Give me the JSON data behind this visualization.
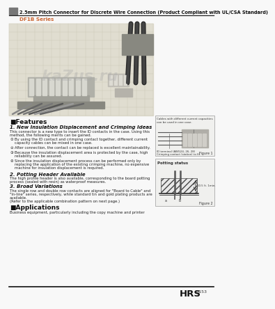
{
  "title": "2.5mm Pitch Connector for Discrete Wire Connection (Product Compliant with UL/CSA Standard)",
  "series_name": "DF1B Series",
  "bg_color": "#f8f8f8",
  "header_bar_color": "#777777",
  "header_line_color": "#222222",
  "features_header": "■Features",
  "section1_title": "1. New Insulation Displacement and Crimping Ideas",
  "section1_body_line1": "This connector is a new type to insert the ID contacts in the case. Using this",
  "section1_body_line2": "method, the following merits can be gained.",
  "section1_items": [
    "By using the ID contact and crimping contact together, different current\n    capacity cables can be mixed in one case.",
    "After connection, the contact can be replaced is excellent maintainability.",
    "Because the insulation displacement area is protected by the case, high\n    reliability can be assured.",
    "Since the insulation displacement process can be performed only by\n    replacing the application of the existing crimping machine, no expensive\n    machine for insulation displacement is required."
  ],
  "section2_title": "2. Potting Header Available",
  "section2_body": "The high profile header is also available, corresponding to the board potting\nprocess (sealed with resin) as waterproof measures.",
  "section3_title": "3. Broad Variations",
  "section3_body": "The single row and double row contacts are aligned for \"Board to Cable\" and\n\"In-line\" series, respectively, while standard tin and gold plating products are\navailable.\n(Refer to the applicable combination pattern on next page.)",
  "applications_header": "■Applications",
  "applications_body": "Business equipment, particularly including the copy machine and printer",
  "figure1_caption": "Figure 1",
  "figure2_caption": "Figure 2",
  "figure1_note1": "Cables with different current capacities",
  "figure1_note2": "can be used in one case.",
  "figure1_note3": "ID terminal (AWG24, 26, 28)",
  "figure1_note4": "Crimping contact (station) to fit",
  "figure2_title": "Potting status",
  "figure2_note": "10.5 (t. 1min.",
  "footer_text": "HRS",
  "footer_page": "B153",
  "series_color": "#cc6633",
  "img_bg": "#e0ddd0",
  "img_grid": "#c8c5b0"
}
